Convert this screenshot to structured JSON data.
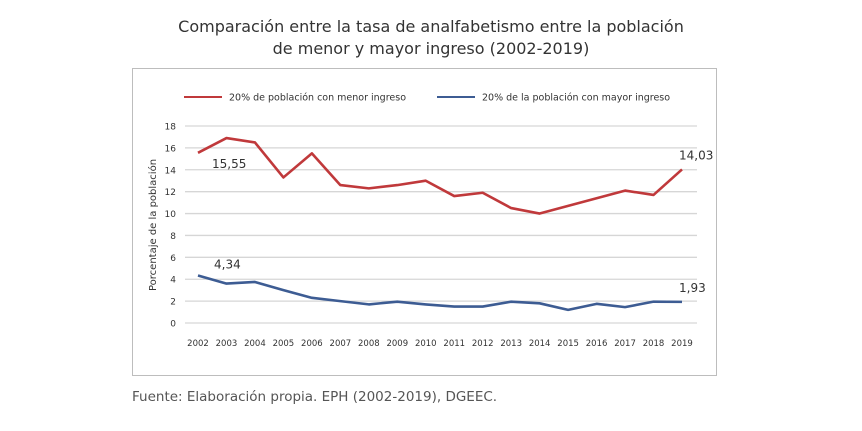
{
  "chart_data": {
    "type": "line",
    "title_line1": "Comparación entre la tasa de analfabetismo entre la población",
    "title_line2": "de menor y mayor ingreso (2002-2019)",
    "xlabel": "",
    "ylabel": "Porcentaje de la población",
    "ylim": [
      0,
      18
    ],
    "yticks": [
      "0",
      "2",
      "4",
      "6",
      "8",
      "10",
      "12",
      "14",
      "16",
      "18"
    ],
    "x": [
      "2002",
      "2003",
      "2004",
      "2005",
      "2006",
      "2007",
      "2008",
      "2009",
      "2010",
      "2011",
      "2012",
      "2013",
      "2014",
      "2015",
      "2016",
      "2017",
      "2018",
      "2019"
    ],
    "grid": true,
    "legend_position": "top",
    "series": [
      {
        "name": "20% de población con menor ingreso",
        "color": "#c0393b",
        "values": [
          15.55,
          16.9,
          16.5,
          13.3,
          15.5,
          12.6,
          12.3,
          12.6,
          13.0,
          11.6,
          11.9,
          10.5,
          10.0,
          10.7,
          11.4,
          12.1,
          11.7,
          14.03
        ],
        "labels": [
          {
            "index": 0,
            "text": "15,55"
          },
          {
            "index": 17,
            "text": "14,03"
          }
        ]
      },
      {
        "name": "20% de la población con mayor ingreso",
        "color": "#3d5c93",
        "values": [
          4.34,
          3.6,
          3.75,
          3.0,
          2.3,
          2.0,
          1.7,
          1.95,
          1.7,
          1.5,
          1.5,
          1.95,
          1.8,
          1.2,
          1.75,
          1.45,
          1.95,
          1.93
        ],
        "labels": [
          {
            "index": 0,
            "text": "4,34"
          },
          {
            "index": 17,
            "text": "1,93"
          }
        ]
      }
    ]
  },
  "source": "Fuente: Elaboración propia. EPH (2002-2019), DGEEC."
}
